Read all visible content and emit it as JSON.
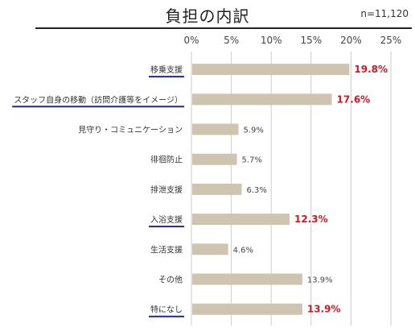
{
  "title": "負担の内訳",
  "note": "n=11,120",
  "chart_data": {
    "type": "bar",
    "orientation": "horizontal",
    "title": "負担の内訳",
    "xlim": [
      0,
      25
    ],
    "x_ticks": [
      "0%",
      "5%",
      "10%",
      "15%",
      "20%",
      "25%"
    ],
    "grid": true,
    "categories": [
      "移乗支援",
      "スタッフ自身の移動（訪問介護等をイメージ）",
      "見守り・コミュニケーション",
      "徘徊防止",
      "排泄支援",
      "入浴支援",
      "生活支援",
      "その他",
      "特になし"
    ],
    "values": [
      19.8,
      17.6,
      5.9,
      5.7,
      6.3,
      12.3,
      4.6,
      13.9,
      13.9
    ],
    "value_labels": [
      "19.8%",
      "17.6%",
      "5.9%",
      "5.7%",
      "6.3%",
      "12.3%",
      "4.6%",
      "13.9%",
      "13.9%"
    ],
    "highlighted": [
      true,
      true,
      false,
      false,
      false,
      true,
      false,
      false,
      true
    ],
    "bar_color": "#cfc4b0",
    "highlight_text_color": "#e0141e",
    "highlight_underline_color": "#1f2a8c",
    "grid_color": "#cccccc"
  }
}
